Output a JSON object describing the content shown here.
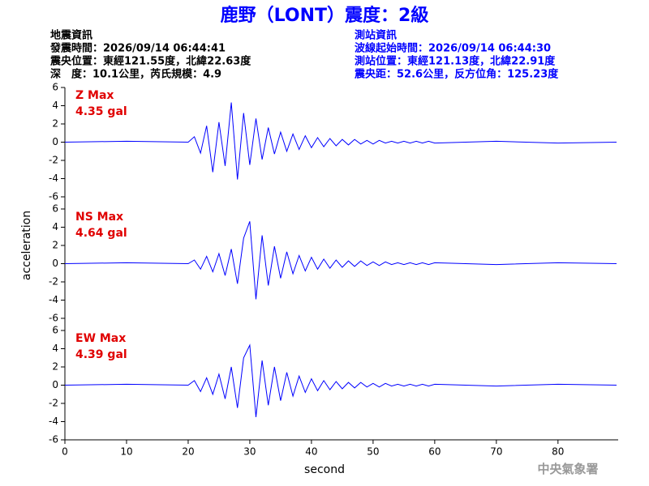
{
  "header": {
    "title": "鹿野（LONT）震度：2級",
    "left": [
      "地震資訊",
      "發震時間：2026/09/14 06:44:41",
      "震央位置：東經121.55度，北緯22.63度",
      "深　度：10.1公里，芮氏規模：4.9"
    ],
    "right": [
      "測站資訊",
      "波線起始時間：2026/09/14 06:44:30",
      "測站位置：東經121.13度，北緯22.91度",
      "震央距：52.6公里，反方位角：125.23度"
    ]
  },
  "chart_data": {
    "type": "line",
    "y_label": "acceleration",
    "x_label": "second",
    "footer": "中央氣象署",
    "x": [
      0,
      10,
      20,
      21,
      22,
      23,
      24,
      25,
      26,
      27,
      28,
      29,
      30,
      31,
      32,
      33,
      34,
      35,
      36,
      37,
      38,
      39,
      40,
      41,
      42,
      43,
      44,
      45,
      46,
      47,
      48,
      49,
      50,
      51,
      52,
      53,
      54,
      55,
      56,
      57,
      58,
      59,
      60,
      70,
      80,
      89.5
    ],
    "xlim": [
      0,
      89.5
    ],
    "xticks": [
      0,
      10,
      20,
      30,
      40,
      50,
      60,
      70,
      80
    ],
    "ylim": [
      -6,
      6
    ],
    "yticks": [
      -6,
      -4,
      -2,
      0,
      2,
      4,
      6
    ],
    "series": [
      {
        "name": "Z Max",
        "annotation": "4.35 gal",
        "color": "#0000ff",
        "values": [
          0,
          0.1,
          0,
          0.6,
          -1.2,
          1.8,
          -3.3,
          2.2,
          -2.6,
          4.35,
          -4.1,
          3.2,
          -2.5,
          2.6,
          -1.9,
          1.6,
          -1.3,
          1.1,
          -1,
          0.9,
          -0.8,
          0.7,
          -0.6,
          0.5,
          -0.5,
          0.4,
          -0.4,
          0.3,
          -0.3,
          0.3,
          -0.2,
          0.2,
          -0.2,
          0.2,
          -0.1,
          0.1,
          -0.1,
          0.1,
          -0.1,
          0.1,
          -0.1,
          0.1,
          -0.1,
          0.1,
          -0.1,
          0
        ]
      },
      {
        "name": "NS Max",
        "annotation": "4.64 gal",
        "color": "#0000ff",
        "values": [
          0,
          0.1,
          0,
          0.4,
          -0.6,
          0.8,
          -0.9,
          1.1,
          -1.3,
          1.6,
          -2.2,
          2.8,
          4.64,
          -3.9,
          3.1,
          -2.4,
          1.9,
          -1.6,
          1.3,
          -1.1,
          0.9,
          -0.8,
          0.7,
          -0.6,
          0.5,
          -0.5,
          0.4,
          -0.4,
          0.3,
          -0.3,
          0.3,
          -0.2,
          0.2,
          -0.2,
          0.2,
          -0.1,
          0.1,
          -0.1,
          0.1,
          -0.1,
          0.1,
          -0.1,
          0.1,
          -0.1,
          0.1,
          0
        ]
      },
      {
        "name": "EW Max",
        "annotation": "4.39 gal",
        "color": "#0000ff",
        "values": [
          0,
          0.1,
          0,
          0.5,
          -0.7,
          0.8,
          -1,
          1.2,
          -1.5,
          2,
          -2.5,
          3,
          4.39,
          -3.5,
          2.7,
          -2.2,
          2,
          -1.7,
          1.4,
          -1.2,
          1,
          -0.8,
          0.7,
          -0.6,
          0.5,
          -0.5,
          0.4,
          -0.4,
          0.3,
          -0.3,
          0.3,
          -0.2,
          0.2,
          -0.2,
          0.2,
          -0.1,
          0.1,
          -0.1,
          0.1,
          -0.1,
          0.1,
          -0.1,
          0.1,
          -0.1,
          0.1,
          0
        ]
      }
    ]
  }
}
